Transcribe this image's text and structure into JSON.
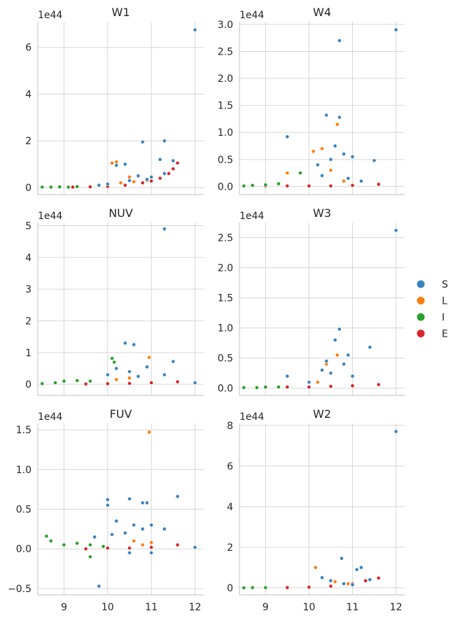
{
  "figure": {
    "legend": {
      "position": "right",
      "entries": [
        {
          "label": "S",
          "color": "#3a83bf"
        },
        {
          "label": "L",
          "color": "#fd7f0e"
        },
        {
          "label": "I",
          "color": "#2ca02c"
        },
        {
          "label": "E",
          "color": "#d62728"
        }
      ]
    }
  },
  "chart_data": [
    {
      "type": "scatter",
      "title": "W1",
      "offset_text": "1e44",
      "xlim": [
        8.4,
        12.2
      ],
      "ylim": [
        -0.3,
        7.1
      ],
      "xticks": [
        9,
        10,
        11,
        12
      ],
      "yticks": [
        0,
        2,
        4,
        6
      ],
      "ytick_labels": [
        "0",
        "2",
        "4",
        "6"
      ],
      "show_xtick_labels": false,
      "grid": true,
      "series": [
        {
          "name": "S",
          "points": [
            [
              12.0,
              6.75
            ],
            [
              11.3,
              2.0
            ],
            [
              10.8,
              1.95
            ],
            [
              11.2,
              1.2
            ],
            [
              11.5,
              1.15
            ],
            [
              10.2,
              0.95
            ],
            [
              10.4,
              1.0
            ],
            [
              10.7,
              0.5
            ],
            [
              10.9,
              0.35
            ],
            [
              11.0,
              0.45
            ],
            [
              11.3,
              0.6
            ],
            [
              10.5,
              0.3
            ],
            [
              9.8,
              0.1
            ],
            [
              10.0,
              0.15
            ]
          ]
        },
        {
          "name": "L",
          "points": [
            [
              10.1,
              1.05
            ],
            [
              10.2,
              1.1
            ],
            [
              10.5,
              0.45
            ],
            [
              10.9,
              0.3
            ],
            [
              10.6,
              0.25
            ],
            [
              10.3,
              0.2
            ]
          ]
        },
        {
          "name": "I",
          "points": [
            [
              8.5,
              0.02
            ],
            [
              8.7,
              0.02
            ],
            [
              8.9,
              0.03
            ],
            [
              9.1,
              0.02
            ],
            [
              9.3,
              0.04
            ]
          ]
        },
        {
          "name": "E",
          "points": [
            [
              9.2,
              0.02
            ],
            [
              9.6,
              0.03
            ],
            [
              10.0,
              0.05
            ],
            [
              10.4,
              0.1
            ],
            [
              10.8,
              0.2
            ],
            [
              11.0,
              0.28
            ],
            [
              11.2,
              0.4
            ],
            [
              11.4,
              0.6
            ],
            [
              11.5,
              0.8
            ],
            [
              11.6,
              1.05
            ]
          ]
        }
      ]
    },
    {
      "type": "scatter",
      "title": "W4",
      "offset_text": "1e44",
      "xlim": [
        8.4,
        12.2
      ],
      "ylim": [
        -0.15,
        3.05
      ],
      "xticks": [
        9,
        10,
        11,
        12
      ],
      "yticks": [
        0,
        0.5,
        1.0,
        1.5,
        2.0,
        2.5,
        3.0
      ],
      "ytick_labels": [
        "0.0",
        "0.5",
        "1.0",
        "1.5",
        "2.0",
        "2.5",
        "3.0"
      ],
      "show_xtick_labels": false,
      "grid": true,
      "series": [
        {
          "name": "S",
          "points": [
            [
              12.0,
              2.9
            ],
            [
              10.7,
              2.7
            ],
            [
              10.4,
              1.32
            ],
            [
              10.7,
              1.28
            ],
            [
              9.5,
              0.92
            ],
            [
              11.5,
              0.48
            ],
            [
              10.6,
              0.75
            ],
            [
              10.8,
              0.6
            ],
            [
              10.2,
              0.4
            ],
            [
              10.5,
              0.5
            ],
            [
              11.0,
              0.55
            ],
            [
              10.3,
              0.2
            ],
            [
              10.9,
              0.15
            ],
            [
              11.2,
              0.1
            ]
          ]
        },
        {
          "name": "L",
          "points": [
            [
              10.65,
              1.15
            ],
            [
              10.3,
              0.7
            ],
            [
              10.1,
              0.65
            ],
            [
              9.5,
              0.25
            ],
            [
              10.5,
              0.3
            ],
            [
              10.8,
              0.1
            ]
          ]
        },
        {
          "name": "I",
          "points": [
            [
              8.5,
              0.01
            ],
            [
              8.7,
              0.02
            ],
            [
              9.0,
              0.03
            ],
            [
              9.3,
              0.05
            ],
            [
              9.8,
              0.25
            ]
          ]
        },
        {
          "name": "E",
          "points": [
            [
              9.0,
              0.01
            ],
            [
              9.5,
              0.01
            ],
            [
              10.0,
              0.01
            ],
            [
              10.5,
              0.01
            ],
            [
              11.0,
              0.02
            ],
            [
              11.6,
              0.04
            ]
          ]
        }
      ]
    },
    {
      "type": "scatter",
      "title": "NUV",
      "offset_text": "1e44",
      "xlim": [
        8.4,
        12.2
      ],
      "ylim": [
        -0.35,
        5.1
      ],
      "xticks": [
        9,
        10,
        11,
        12
      ],
      "yticks": [
        0,
        1,
        2,
        3,
        4,
        5
      ],
      "ytick_labels": [
        "0",
        "1",
        "2",
        "3",
        "4",
        "5"
      ],
      "show_xtick_labels": false,
      "grid": true,
      "series": [
        {
          "name": "S",
          "points": [
            [
              11.3,
              4.9
            ],
            [
              10.4,
              1.3
            ],
            [
              10.6,
              1.25
            ],
            [
              12.0,
              0.05
            ],
            [
              11.5,
              0.72
            ],
            [
              10.9,
              0.55
            ],
            [
              10.2,
              0.5
            ],
            [
              10.5,
              0.4
            ],
            [
              10.0,
              0.3
            ],
            [
              10.7,
              0.25
            ],
            [
              11.3,
              0.3
            ]
          ]
        },
        {
          "name": "L",
          "points": [
            [
              10.95,
              0.85
            ],
            [
              10.5,
              0.2
            ],
            [
              10.2,
              0.15
            ]
          ]
        },
        {
          "name": "I",
          "points": [
            [
              10.1,
              0.82
            ],
            [
              10.15,
              0.7
            ],
            [
              8.5,
              0.02
            ],
            [
              8.8,
              0.05
            ],
            [
              9.0,
              0.1
            ],
            [
              9.3,
              0.12
            ],
            [
              9.6,
              0.1
            ]
          ]
        },
        {
          "name": "E",
          "points": [
            [
              9.5,
              0.01
            ],
            [
              10.0,
              0.02
            ],
            [
              10.5,
              0.03
            ],
            [
              11.0,
              0.05
            ],
            [
              11.6,
              0.08
            ]
          ]
        }
      ]
    },
    {
      "type": "scatter",
      "title": "W3",
      "offset_text": "1e44",
      "xlim": [
        8.4,
        12.2
      ],
      "ylim": [
        -0.12,
        2.75
      ],
      "xticks": [
        9,
        10,
        11,
        12
      ],
      "yticks": [
        0,
        0.5,
        1.0,
        1.5,
        2.0,
        2.5
      ],
      "ytick_labels": [
        "0.0",
        "0.5",
        "1.0",
        "1.5",
        "2.0",
        "2.5"
      ],
      "show_xtick_labels": false,
      "grid": true,
      "series": [
        {
          "name": "S",
          "points": [
            [
              12.0,
              2.62
            ],
            [
              10.7,
              0.98
            ],
            [
              10.6,
              0.8
            ],
            [
              11.4,
              0.68
            ],
            [
              10.9,
              0.55
            ],
            [
              10.4,
              0.45
            ],
            [
              10.8,
              0.4
            ],
            [
              10.3,
              0.3
            ],
            [
              10.5,
              0.25
            ],
            [
              11.0,
              0.2
            ],
            [
              9.5,
              0.2
            ],
            [
              10.0,
              0.1
            ]
          ]
        },
        {
          "name": "L",
          "points": [
            [
              10.65,
              0.55
            ],
            [
              10.4,
              0.4
            ],
            [
              10.2,
              0.1
            ]
          ]
        },
        {
          "name": "I",
          "points": [
            [
              8.5,
              0.01
            ],
            [
              8.8,
              0.01
            ],
            [
              9.0,
              0.02
            ],
            [
              9.3,
              0.02
            ]
          ]
        },
        {
          "name": "E",
          "points": [
            [
              9.0,
              0.01
            ],
            [
              9.5,
              0.02
            ],
            [
              10.0,
              0.02
            ],
            [
              10.5,
              0.03
            ],
            [
              11.0,
              0.04
            ],
            [
              11.6,
              0.06
            ]
          ]
        }
      ]
    },
    {
      "type": "scatter",
      "title": "FUV",
      "offset_text": "1e44",
      "xlim": [
        8.4,
        12.2
      ],
      "ylim": [
        -0.58,
        1.58
      ],
      "xticks": [
        9,
        10,
        11,
        12
      ],
      "yticks": [
        -0.5,
        0,
        0.5,
        1.0,
        1.5
      ],
      "ytick_labels": [
        "−0.5",
        "0.0",
        "0.5",
        "1.0",
        "1.5"
      ],
      "show_xtick_labels": true,
      "xtick_labels": [
        "9",
        "10",
        "11",
        "12"
      ],
      "grid": true,
      "series": [
        {
          "name": "S",
          "points": [
            [
              9.8,
              -0.47
            ],
            [
              10.0,
              0.62
            ],
            [
              10.0,
              0.55
            ],
            [
              10.5,
              0.63
            ],
            [
              10.8,
              0.58
            ],
            [
              10.9,
              0.58
            ],
            [
              11.6,
              0.66
            ],
            [
              12.0,
              0.02
            ],
            [
              10.2,
              0.35
            ],
            [
              10.6,
              0.3
            ],
            [
              10.8,
              0.25
            ],
            [
              11.0,
              0.3
            ],
            [
              11.3,
              0.25
            ],
            [
              10.4,
              0.2
            ],
            [
              10.1,
              0.18
            ],
            [
              9.7,
              0.15
            ],
            [
              11.0,
              -0.05
            ],
            [
              10.5,
              -0.05
            ]
          ]
        },
        {
          "name": "L",
          "points": [
            [
              10.95,
              1.47
            ],
            [
              10.6,
              0.1
            ],
            [
              10.8,
              0.05
            ],
            [
              11.0,
              0.08
            ]
          ]
        },
        {
          "name": "I",
          "points": [
            [
              8.6,
              0.16
            ],
            [
              8.7,
              0.1
            ],
            [
              9.0,
              0.05
            ],
            [
              9.3,
              0.07
            ],
            [
              9.6,
              0.05
            ],
            [
              9.6,
              -0.1
            ],
            [
              9.9,
              0.03
            ]
          ]
        },
        {
          "name": "E",
          "points": [
            [
              9.5,
              0.0
            ],
            [
              10.0,
              0.01
            ],
            [
              10.5,
              0.01
            ],
            [
              11.0,
              0.02
            ],
            [
              11.6,
              0.05
            ]
          ]
        }
      ]
    },
    {
      "type": "scatter",
      "title": "W2",
      "offset_text": "1e44",
      "xlim": [
        8.4,
        12.2
      ],
      "ylim": [
        -0.35,
        8.1
      ],
      "xticks": [
        9,
        10,
        11,
        12
      ],
      "yticks": [
        0,
        2,
        4,
        6,
        8
      ],
      "ytick_labels": [
        "0",
        "2",
        "4",
        "6",
        "8"
      ],
      "show_xtick_labels": true,
      "xtick_labels": [
        "9",
        "10",
        "11",
        "12"
      ],
      "grid": true,
      "series": [
        {
          "name": "S",
          "points": [
            [
              12.0,
              7.7
            ],
            [
              10.75,
              1.45
            ],
            [
              11.2,
              1.0
            ],
            [
              11.1,
              0.9
            ],
            [
              10.3,
              0.5
            ],
            [
              10.5,
              0.35
            ],
            [
              10.8,
              0.2
            ],
            [
              11.0,
              0.15
            ],
            [
              11.4,
              0.4
            ]
          ]
        },
        {
          "name": "L",
          "points": [
            [
              10.15,
              1.0
            ],
            [
              10.6,
              0.3
            ],
            [
              10.9,
              0.2
            ]
          ]
        },
        {
          "name": "I",
          "points": [
            [
              8.5,
              0.0
            ],
            [
              8.7,
              0.01
            ],
            [
              9.0,
              0.01
            ]
          ]
        },
        {
          "name": "E",
          "points": [
            [
              9.0,
              0.0
            ],
            [
              9.5,
              0.01
            ],
            [
              10.0,
              0.03
            ],
            [
              10.5,
              0.08
            ],
            [
              11.0,
              0.2
            ],
            [
              11.3,
              0.35
            ],
            [
              11.6,
              0.48
            ]
          ]
        }
      ]
    }
  ]
}
